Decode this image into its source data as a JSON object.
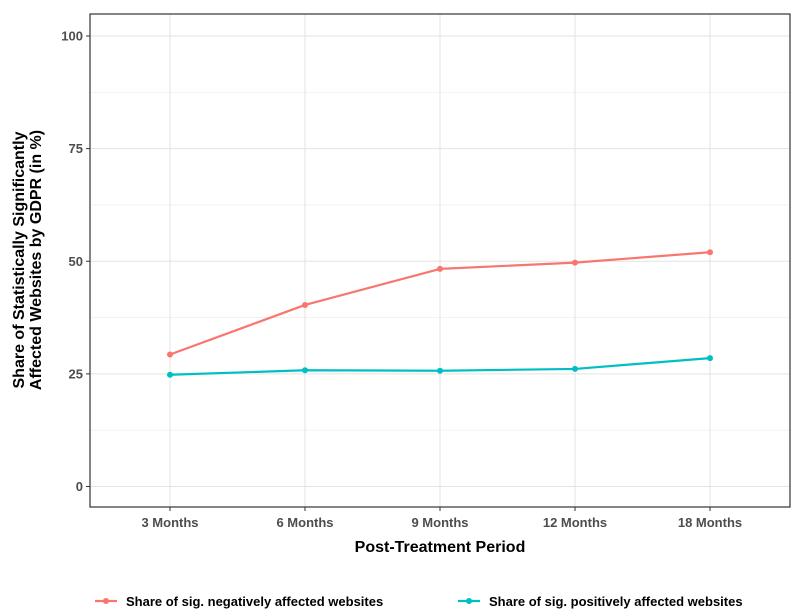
{
  "chart_data": {
    "type": "line",
    "title": "",
    "xlabel": "Post-Treatment Period",
    "ylabel_lines": [
      "Share of Statistically Significantly",
      "Affected Websites by GDPR (in %)"
    ],
    "categories": [
      "3 Months",
      "6 Months",
      "9 Months",
      "12 Months",
      "18 Months"
    ],
    "ylim": [
      0,
      100
    ],
    "yticks": [
      0,
      25,
      50,
      75,
      100
    ],
    "grid": true,
    "legend_position": "bottom",
    "series": [
      {
        "name": "Share of sig. negatively affected websites",
        "color": "#F8766D",
        "values": [
          29.3,
          40.3,
          48.3,
          49.7,
          52.0
        ]
      },
      {
        "name": "Share of sig. positively affected websites",
        "color": "#00BFC4",
        "values": [
          24.8,
          25.8,
          25.7,
          26.1,
          28.5
        ]
      }
    ]
  }
}
